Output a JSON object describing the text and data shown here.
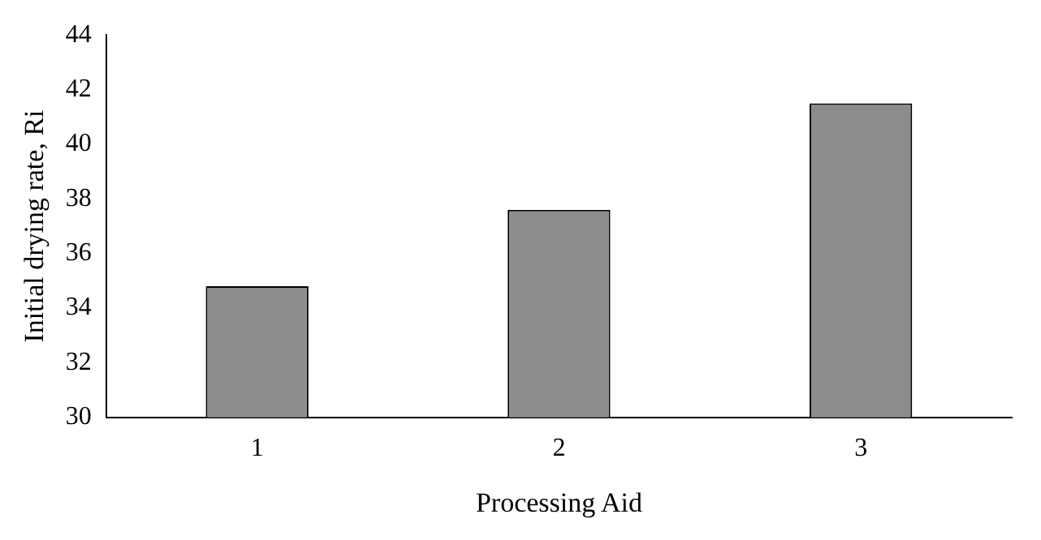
{
  "chart_data": {
    "type": "bar",
    "xlabel": "Processing Aid",
    "ylabel": "Initial drying rate, Ri",
    "categories": [
      "1",
      "2",
      "3"
    ],
    "values": [
      34.8,
      37.6,
      41.5
    ],
    "color": "#8c8c8c",
    "ylim": [
      30,
      44
    ],
    "yticks": [
      30,
      32,
      34,
      36,
      38,
      40,
      42,
      44
    ],
    "grid": false,
    "legend": false
  }
}
